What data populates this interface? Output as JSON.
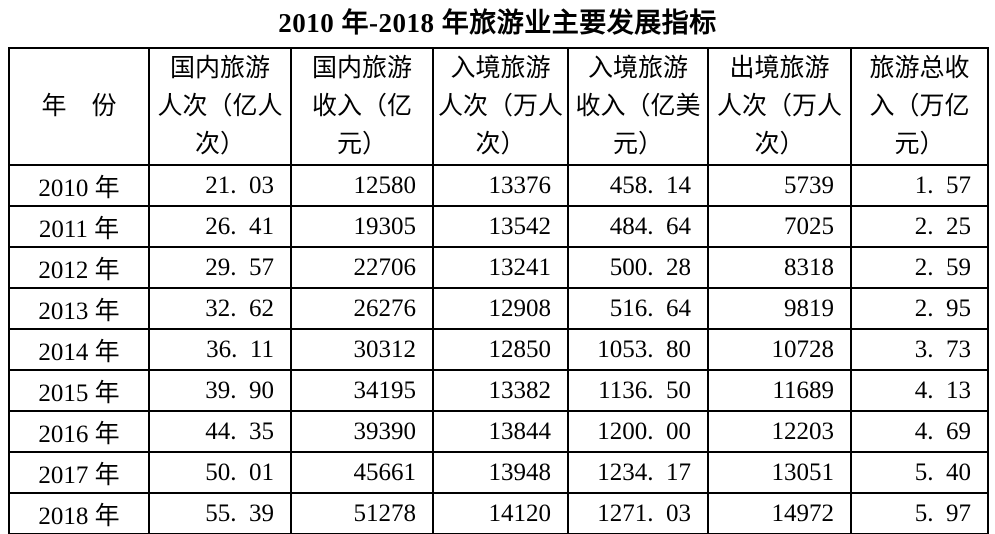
{
  "title": "2010 年-2018 年旅游业主要发展指标",
  "colors": {
    "background": "#ffffff",
    "text": "#000000",
    "border": "#000000"
  },
  "table": {
    "columns": [
      {
        "id": "year",
        "label": "年　份"
      },
      {
        "id": "domestic_trips",
        "label": "国内旅游\n人次（亿人\n次）"
      },
      {
        "id": "domestic_revenue",
        "label": "国内旅游\n收入（亿\n元）"
      },
      {
        "id": "inbound_trips",
        "label": "入境旅游\n人次（万人\n次）"
      },
      {
        "id": "inbound_revenue",
        "label": "入境旅游\n收入（亿美\n元）"
      },
      {
        "id": "outbound_trips",
        "label": "出境旅游\n人次（万人\n次）"
      },
      {
        "id": "total_revenue",
        "label": "旅游总收\n入（万亿\n元）"
      }
    ],
    "rows": [
      {
        "cells": [
          "2010 年",
          "21.03",
          "12580",
          "13376",
          "458.14",
          "5739",
          "1.57"
        ]
      },
      {
        "cells": [
          "2011 年",
          "26.41",
          "19305",
          "13542",
          "484.64",
          "7025",
          "2.25"
        ]
      },
      {
        "cells": [
          "2012 年",
          "29.57",
          "22706",
          "13241",
          "500.28",
          "8318",
          "2.59"
        ]
      },
      {
        "cells": [
          "2013 年",
          "32.62",
          "26276",
          "12908",
          "516.64",
          "9819",
          "2.95"
        ]
      },
      {
        "cells": [
          "2014 年",
          "36.11",
          "30312",
          "12850",
          "1053.80",
          "10728",
          "3.73"
        ]
      },
      {
        "cells": [
          "2015 年",
          "39.90",
          "34195",
          "13382",
          "1136.50",
          "11689",
          "4.13"
        ]
      },
      {
        "cells": [
          "2016 年",
          "44.35",
          "39390",
          "13844",
          "1200.00",
          "12203",
          "4.69"
        ]
      },
      {
        "cells": [
          "2017 年",
          "50.01",
          "45661",
          "13948",
          "1234.17",
          "13051",
          "5.40"
        ]
      },
      {
        "cells": [
          "2018 年",
          "55.39",
          "51278",
          "14120",
          "1271.03",
          "14972",
          "5.97"
        ]
      }
    ]
  }
}
